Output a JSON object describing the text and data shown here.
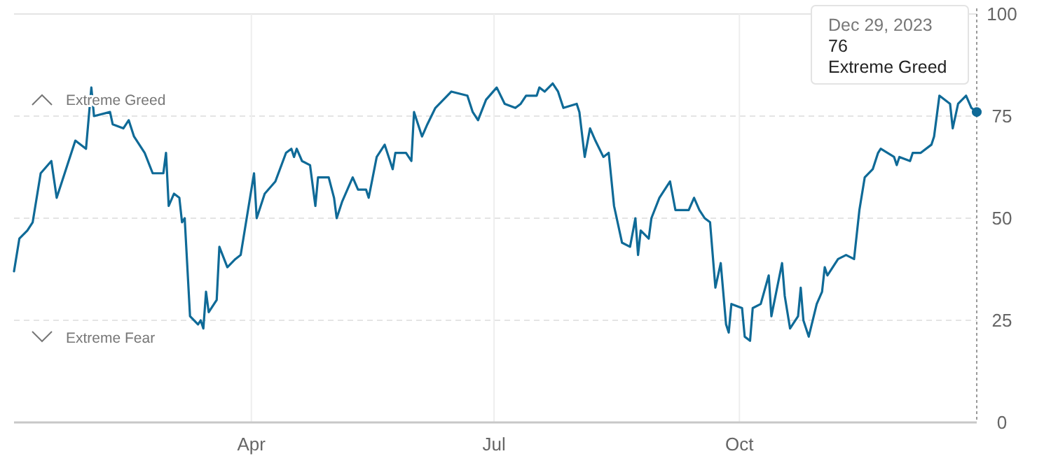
{
  "chart_data": {
    "type": "line",
    "x": [
      "2023-01-02",
      "2023-01-04",
      "2023-01-07",
      "2023-01-09",
      "2023-01-12",
      "2023-01-16",
      "2023-01-18",
      "2023-01-22",
      "2023-01-25",
      "2023-01-29",
      "2023-01-31",
      "2023-02-01",
      "2023-02-07",
      "2023-02-08",
      "2023-02-12",
      "2023-02-14",
      "2023-02-16",
      "2023-02-20",
      "2023-02-23",
      "2023-02-27",
      "2023-02-28",
      "2023-03-01",
      "2023-03-03",
      "2023-03-05",
      "2023-03-06",
      "2023-03-07",
      "2023-03-09",
      "2023-03-12",
      "2023-03-13",
      "2023-03-14",
      "2023-03-15",
      "2023-03-16",
      "2023-03-19",
      "2023-03-20",
      "2023-03-23",
      "2023-03-26",
      "2023-03-28",
      "2023-04-02",
      "2023-04-03",
      "2023-04-06",
      "2023-04-10",
      "2023-04-14",
      "2023-04-16",
      "2023-04-17",
      "2023-04-18",
      "2023-04-20",
      "2023-04-23",
      "2023-04-25",
      "2023-04-26",
      "2023-04-30",
      "2023-05-02",
      "2023-05-03",
      "2023-05-05",
      "2023-05-07",
      "2023-05-09",
      "2023-05-11",
      "2023-05-14",
      "2023-05-15",
      "2023-05-18",
      "2023-05-21",
      "2023-05-24",
      "2023-05-25",
      "2023-05-29",
      "2023-05-31",
      "2023-06-01",
      "2023-06-04",
      "2023-06-06",
      "2023-06-09",
      "2023-06-12",
      "2023-06-15",
      "2023-06-21",
      "2023-06-23",
      "2023-06-25",
      "2023-06-28",
      "2023-07-02",
      "2023-07-05",
      "2023-07-09",
      "2023-07-11",
      "2023-07-13",
      "2023-07-17",
      "2023-07-18",
      "2023-07-20",
      "2023-07-23",
      "2023-07-25",
      "2023-07-27",
      "2023-08-01",
      "2023-08-02",
      "2023-08-04",
      "2023-08-06",
      "2023-08-08",
      "2023-08-11",
      "2023-08-13",
      "2023-08-15",
      "2023-08-18",
      "2023-08-21",
      "2023-08-23",
      "2023-08-24",
      "2023-08-25",
      "2023-08-28",
      "2023-08-29",
      "2023-09-01",
      "2023-09-05",
      "2023-09-07",
      "2023-09-12",
      "2023-09-14",
      "2023-09-16",
      "2023-09-18",
      "2023-09-20",
      "2023-09-22",
      "2023-09-24",
      "2023-09-26",
      "2023-09-27",
      "2023-09-28",
      "2023-10-02",
      "2023-10-03",
      "2023-10-05",
      "2023-10-06",
      "2023-10-09",
      "2023-10-12",
      "2023-10-13",
      "2023-10-17",
      "2023-10-18",
      "2023-10-20",
      "2023-10-23",
      "2023-10-24",
      "2023-10-25",
      "2023-10-27",
      "2023-10-30",
      "2023-11-01",
      "2023-11-02",
      "2023-11-03",
      "2023-11-07",
      "2023-11-10",
      "2023-11-13",
      "2023-11-15",
      "2023-11-17",
      "2023-11-20",
      "2023-11-22",
      "2023-11-23",
      "2023-11-28",
      "2023-11-29",
      "2023-11-30",
      "2023-12-04",
      "2023-12-05",
      "2023-12-08",
      "2023-12-12",
      "2023-12-13",
      "2023-12-15",
      "2023-12-19",
      "2023-12-20",
      "2023-12-22",
      "2023-12-25",
      "2023-12-27",
      "2023-12-29"
    ],
    "series": [
      {
        "color": "#0f6a97",
        "values": [
          37,
          45,
          47,
          49,
          61,
          64,
          55,
          63,
          69,
          67,
          82,
          75,
          76,
          73,
          72,
          74,
          70,
          66,
          61,
          61,
          66,
          53,
          56,
          55,
          49,
          50,
          26,
          24,
          25,
          23,
          32,
          27,
          30,
          43,
          38,
          40,
          41,
          61,
          50,
          56,
          59,
          66,
          67,
          65,
          67,
          64,
          63,
          53,
          60,
          60,
          55,
          50,
          54,
          57,
          60,
          57,
          57,
          55,
          65,
          68,
          62,
          66,
          66,
          64,
          76,
          70,
          73,
          77,
          79,
          81,
          80,
          76,
          74,
          79,
          82,
          78,
          77,
          78,
          80,
          80,
          82,
          81,
          83,
          81,
          77,
          78,
          76,
          65,
          72,
          69,
          65,
          66,
          53,
          44,
          43,
          50,
          41,
          47,
          45,
          50,
          55,
          59,
          52,
          52,
          55,
          52,
          50,
          49,
          33,
          39,
          24,
          22,
          29,
          28,
          21,
          20,
          28,
          29,
          36,
          26,
          39,
          31,
          23,
          26,
          33,
          25,
          21,
          29,
          32,
          38,
          36,
          40,
          41,
          40,
          52,
          60,
          62,
          66,
          67,
          65,
          63,
          65,
          64,
          66,
          66,
          68,
          70,
          80,
          78,
          72,
          78,
          80,
          77,
          76
        ]
      }
    ],
    "xlim": [
      "2023-01-02",
      "2023-12-29"
    ],
    "xticks": [
      {
        "value": "2023-04-01",
        "label": "Apr"
      },
      {
        "value": "2023-07-01",
        "label": "Jul"
      },
      {
        "value": "2023-10-01",
        "label": "Oct"
      }
    ],
    "ylim": [
      0,
      100
    ],
    "yticks": [
      0,
      25,
      50,
      75,
      100
    ],
    "grid": true,
    "marker": "none",
    "line_style": "solid",
    "ref_lines": [
      {
        "axis": "x",
        "value": "2023-12-29",
        "line_style": "dotted",
        "color": "#9a9a9a"
      }
    ],
    "annotations": [
      "Extreme Greed",
      "Extreme Fear",
      "Dec 29, 2023\n76\nExtreme Greed"
    ]
  }
}
